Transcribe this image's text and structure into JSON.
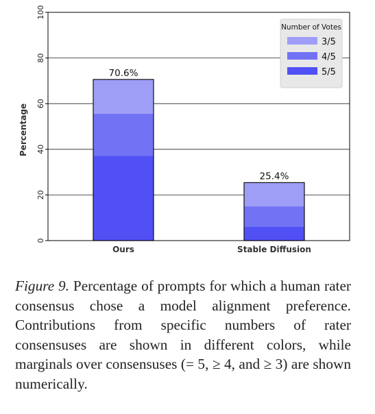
{
  "chart_data": {
    "type": "bar",
    "stacked": true,
    "categories": [
      "Ours",
      "Stable Diffusion"
    ],
    "ylabel": "Percentage",
    "xlabel": "",
    "ylim": [
      0,
      100
    ],
    "yticks": [
      0,
      20,
      40,
      60,
      80,
      100
    ],
    "grid": true,
    "series": [
      {
        "name": "5/5",
        "values": [
          37.2,
          6.0
        ],
        "color": "#5050f5"
      },
      {
        "name": "4/5",
        "values": [
          18.4,
          9.0
        ],
        "color": "#7272f5"
      },
      {
        "name": "3/5",
        "values": [
          15.0,
          10.4
        ],
        "color": "#9e9ef7"
      }
    ],
    "totals": [
      70.6,
      25.4
    ],
    "total_labels": [
      "70.6%",
      "25.4%"
    ],
    "legend": {
      "title": "Number of Votes",
      "entries": [
        {
          "label": "3/5",
          "color": "#9e9ef7"
        },
        {
          "label": "4/5",
          "color": "#7272f5"
        },
        {
          "label": "5/5",
          "color": "#5050f5"
        }
      ],
      "placement": "top-right"
    }
  },
  "caption": {
    "label": "Figure 9.",
    "text": "Percentage of prompts for which a human rater consensus chose a model alignment preference. Contributions from specific numbers of rater consensuses are shown in different colors, while marginals over consensuses (= 5, ≥ 4, and ≥ 3) are shown numerically."
  }
}
